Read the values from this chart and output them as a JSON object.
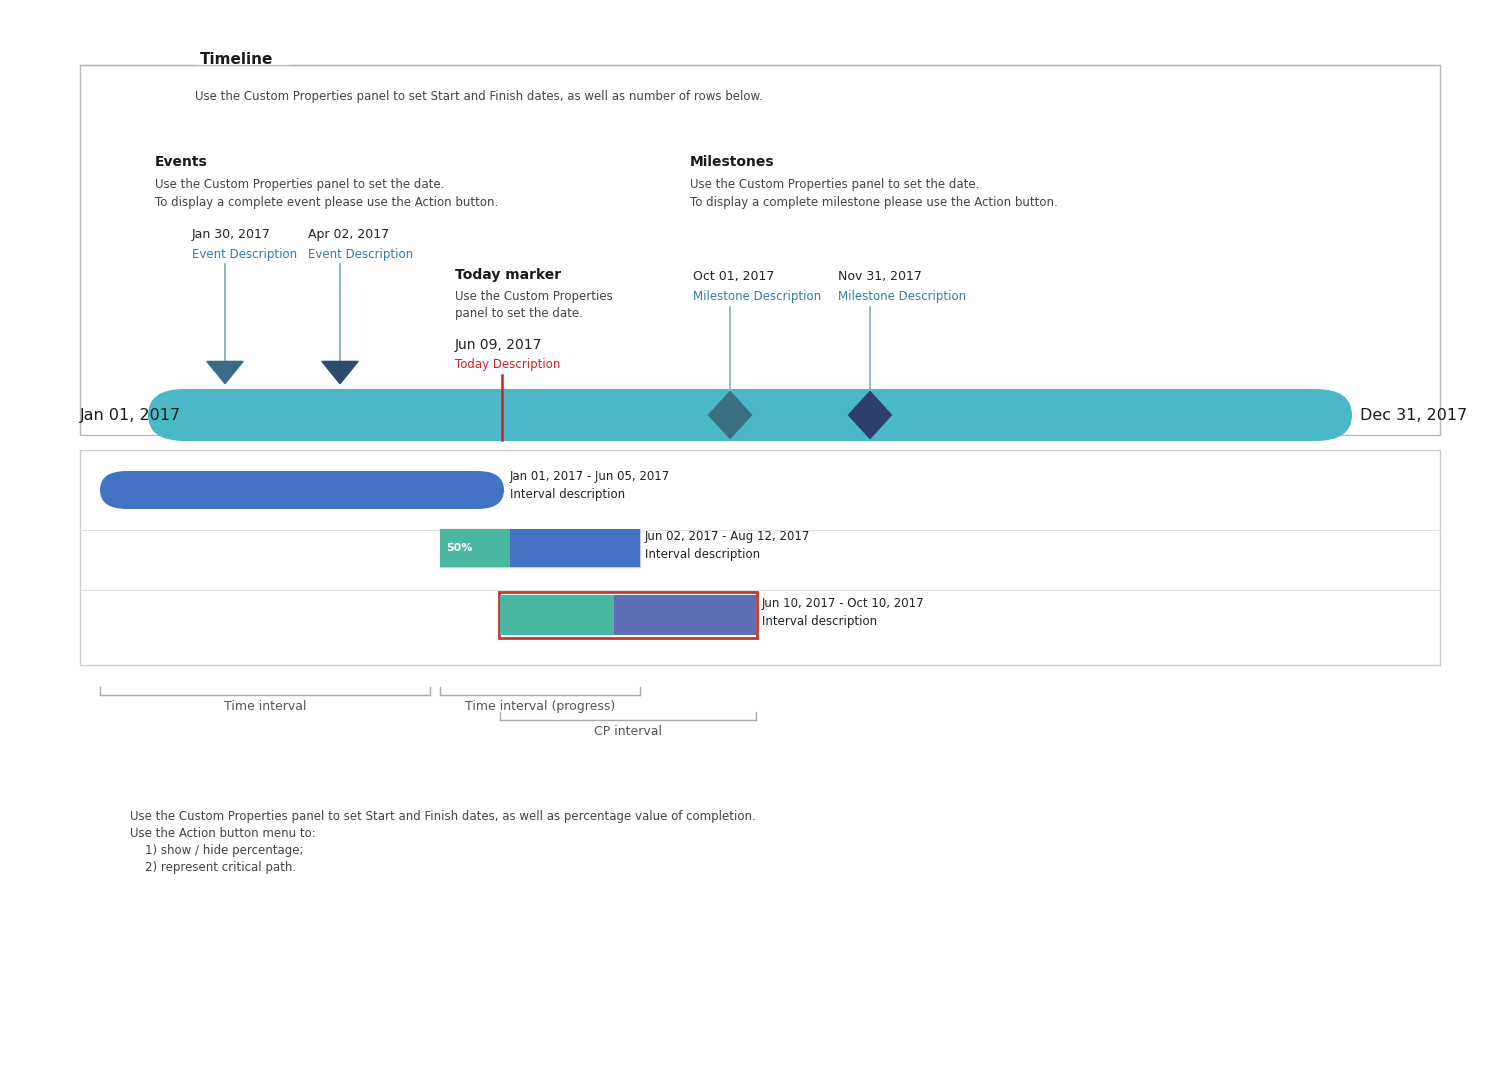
{
  "bg_color": "#ffffff",
  "fig_width": 15.0,
  "fig_height": 10.65,
  "timeline_label": "Timeline",
  "timeline_desc": "Use the Custom Properties panel to set Start and Finish dates, as well as number of rows below.",
  "timeline_bar_color": "#4bb8c8",
  "timeline_start_label": "Jan 01, 2017",
  "timeline_end_label": "Dec 31, 2017",
  "events_title": "Events",
  "events_desc_line1": "Use the Custom Properties panel to set the date.",
  "events_desc_line2": "To display a complete event please use the Action button.",
  "milestones_title": "Milestones",
  "milestones_desc_line1": "Use the Custom Properties panel to set the date.",
  "milestones_desc_line2": "To display a complete milestone please use the Action button.",
  "event1_date": "Jan 30, 2017",
  "event1_desc": "Event Description",
  "event2_date": "Apr 02, 2017",
  "event2_desc": "Event Description",
  "today_title": "Today marker",
  "today_desc_line1": "Use the Custom Properties",
  "today_desc_line2": "panel to set the date.",
  "today_date": "Jun 09, 2017",
  "today_marker_label": "Today Description",
  "milestone1_date": "Oct 01, 2017",
  "milestone1_desc": "Milestone Description",
  "milestone2_date": "Nov 31, 2017",
  "milestone2_desc": "Milestone Description",
  "bar1_date": "Jan 01, 2017 - Jun 05, 2017",
  "bar1_label": "Interval description",
  "bar1_color": "#4472c4",
  "bar2_progress_label": "50%",
  "bar2_date": "Jun 02, 2017 - Aug 12, 2017",
  "bar2_label": "Interval description",
  "bar2_progress_color": "#4ab8a0",
  "bar2_main_color": "#4472c4",
  "bar3_date": "Jun 10, 2017 - Oct 10, 2017",
  "bar3_label": "Interval description",
  "bar3_progress_color": "#4ab8a0",
  "bar3_main_color": "#6070b8",
  "bar3_border_color": "#c0392b",
  "bottom_text_line1": "Use the Custom Properties panel to set Start and Finish dates, as well as percentage value of completion.",
  "bottom_text_line2": "Use the Action button menu to:",
  "bottom_text_line3": "    1) show / hide percentage;",
  "bottom_text_line4": "    2) represent critical path.",
  "title_color": "#1a1a1a",
  "desc_color_dark": "#444444",
  "desc_color_blue": "#3366aa",
  "date_color": "#222222",
  "label_color_blue": "#3a7aaa",
  "today_red": "#cc2222",
  "gray_line": "#aaaaaa",
  "box_border": "#bbbbbb"
}
